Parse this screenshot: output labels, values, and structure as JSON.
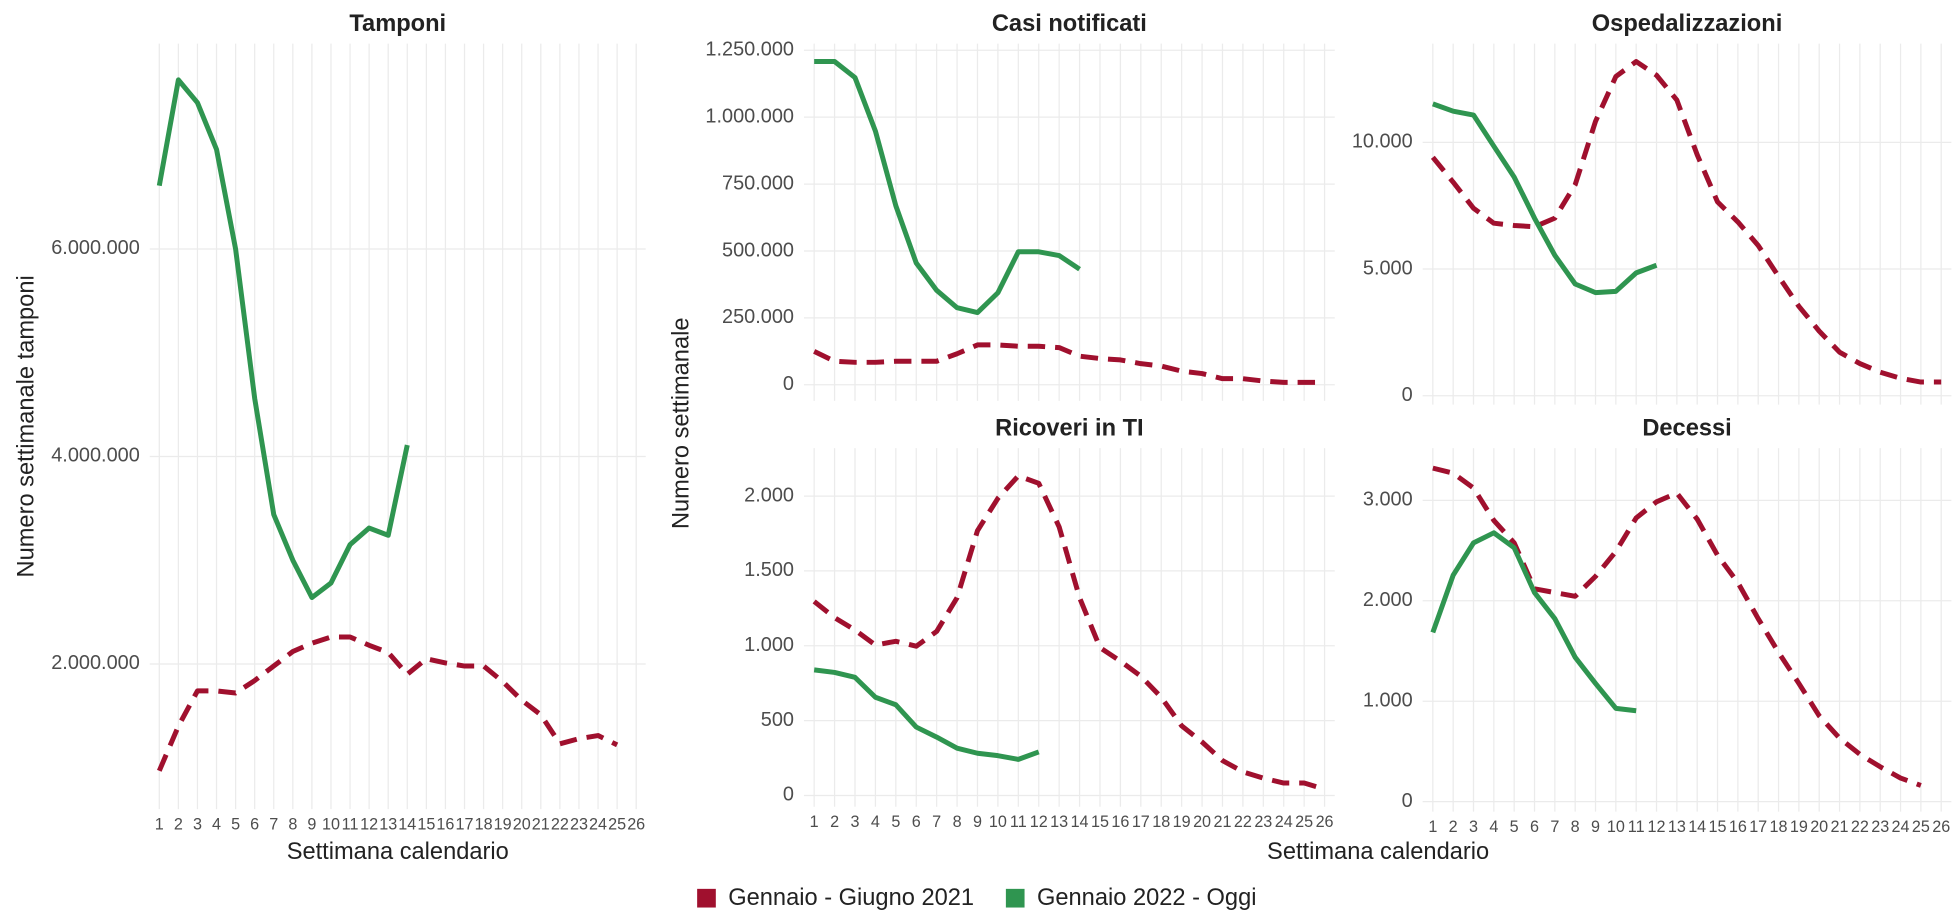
{
  "chart_data": [
    {
      "type": "line",
      "title": "Tamponi",
      "ylabel": "Numero settimanale tamponi",
      "xlabel": "Settimana calendario",
      "x": [
        1,
        2,
        3,
        4,
        5,
        6,
        7,
        8,
        9,
        10,
        11,
        12,
        13,
        14,
        15,
        16,
        17,
        18,
        19,
        20,
        21,
        22,
        23,
        24,
        25,
        26
      ],
      "xlim": [
        0.5,
        26.5
      ],
      "xticks": [
        1,
        2,
        3,
        4,
        5,
        6,
        7,
        8,
        9,
        10,
        11,
        12,
        13,
        14,
        15,
        16,
        17,
        18,
        19,
        20,
        21,
        22,
        23,
        24,
        25,
        26
      ],
      "show_xtick_labels": true,
      "ylim": [
        600000,
        7980000
      ],
      "yticks": [
        {
          "value": 2000000,
          "label": "2.000.000"
        },
        {
          "value": 4000000,
          "label": "4.000.000"
        },
        {
          "value": 6000000,
          "label": "6.000.000"
        }
      ],
      "grid": true,
      "series": [
        {
          "values": [
            970000,
            1400000,
            1740000,
            1740000,
            1720000,
            1840000,
            1980000,
            2120000,
            2200000,
            2260000,
            2260000,
            2180000,
            2110000,
            1900000,
            2050000,
            2010000,
            1980000,
            1980000,
            1830000,
            1650000,
            1510000,
            1230000,
            1280000,
            1310000,
            1220000,
            null
          ]
        },
        {
          "values": [
            6610000,
            7630000,
            7410000,
            6960000,
            6000000,
            4560000,
            3440000,
            3000000,
            2640000,
            2780000,
            3150000,
            3310000,
            3240000,
            4110000,
            null,
            null,
            null,
            null,
            null,
            null,
            null,
            null,
            null,
            null,
            null,
            null
          ]
        }
      ]
    },
    {
      "type": "line",
      "title": "Casi notificati",
      "x": [
        1,
        2,
        3,
        4,
        5,
        6,
        7,
        8,
        9,
        10,
        11,
        12,
        13,
        14,
        15,
        16,
        17,
        18,
        19,
        20,
        21,
        22,
        23,
        24,
        25,
        26
      ],
      "xlim": [
        0.5,
        26.5
      ],
      "xticks": [
        1,
        2,
        3,
        4,
        5,
        6,
        7,
        8,
        9,
        10,
        11,
        12,
        13,
        14,
        15,
        16,
        17,
        18,
        19,
        20,
        21,
        22,
        23,
        24,
        25,
        26
      ],
      "show_xtick_labels": false,
      "ylim": [
        -60000,
        1275000
      ],
      "yticks": [
        0,
        {
          "value": 250000,
          "label": "250.000"
        },
        {
          "value": 500000,
          "label": "500.000"
        },
        {
          "value": 750000,
          "label": "750.000"
        },
        {
          "value": 1000000,
          "label": "1.000.000"
        },
        {
          "value": 1250000,
          "label": "1.250.000"
        }
      ],
      "grid": true,
      "series": [
        {
          "values": [
            125000,
            88000,
            84000,
            84000,
            88000,
            88000,
            88000,
            116000,
            149000,
            149000,
            144000,
            144000,
            139000,
            107000,
            98000,
            93000,
            79000,
            70000,
            51000,
            42000,
            23000,
            23000,
            14000,
            9000,
            9000,
            9000
          ]
        },
        {
          "values": [
            1208000,
            1208000,
            1148000,
            948000,
            669000,
            455000,
            353000,
            288000,
            270000,
            344000,
            497000,
            497000,
            483000,
            432000,
            null,
            null,
            null,
            null,
            null,
            null,
            null,
            null,
            null,
            null,
            null,
            null
          ]
        }
      ]
    },
    {
      "type": "line",
      "title": "Ospedalizzazioni",
      "x": [
        1,
        2,
        3,
        4,
        5,
        6,
        7,
        8,
        9,
        10,
        11,
        12,
        13,
        14,
        15,
        16,
        17,
        18,
        19,
        20,
        21,
        22,
        23,
        24,
        25,
        26
      ],
      "xlim": [
        0.5,
        26.5
      ],
      "xticks": [
        1,
        2,
        3,
        4,
        5,
        6,
        7,
        8,
        9,
        10,
        11,
        12,
        13,
        14,
        15,
        16,
        17,
        18,
        19,
        20,
        21,
        22,
        23,
        24,
        25,
        26
      ],
      "show_xtick_labels": false,
      "ylim": [
        -350,
        13900
      ],
      "yticks": [
        0,
        {
          "value": 5000,
          "label": "5.000"
        },
        {
          "value": 10000,
          "label": "10.000"
        }
      ],
      "grid": true,
      "series": [
        {
          "values": [
            9410,
            8430,
            7400,
            6810,
            6720,
            6670,
            7010,
            8330,
            10830,
            12600,
            13190,
            12650,
            11670,
            9510,
            7650,
            6860,
            5930,
            4710,
            3530,
            2550,
            1720,
            1270,
            930,
            690,
            540,
            540
          ]
        },
        {
          "values": [
            11520,
            11230,
            11080,
            9850,
            8630,
            7010,
            5540,
            4410,
            4070,
            4120,
            4850,
            5150,
            null,
            null,
            null,
            null,
            null,
            null,
            null,
            null,
            null,
            null,
            null,
            null,
            null,
            null
          ]
        }
      ]
    },
    {
      "type": "line",
      "title": "Ricoveri in TI",
      "x": [
        1,
        2,
        3,
        4,
        5,
        6,
        7,
        8,
        9,
        10,
        11,
        12,
        13,
        14,
        15,
        16,
        17,
        18,
        19,
        20,
        21,
        22,
        23,
        24,
        25,
        26
      ],
      "xlim": [
        0.5,
        26.5
      ],
      "xticks": [
        1,
        2,
        3,
        4,
        5,
        6,
        7,
        8,
        9,
        10,
        11,
        12,
        13,
        14,
        15,
        16,
        17,
        18,
        19,
        20,
        21,
        22,
        23,
        24,
        25,
        26
      ],
      "show_xtick_labels": true,
      "ylim": [
        -75,
        2320
      ],
      "yticks": [
        0,
        500,
        {
          "value": 1000,
          "label": "1.000"
        },
        {
          "value": 1500,
          "label": "1.500"
        },
        {
          "value": 2000,
          "label": "2.000"
        }
      ],
      "grid": true,
      "series": [
        {
          "values": [
            1296,
            1188,
            1105,
            1005,
            1030,
            997,
            1096,
            1321,
            1769,
            1985,
            2135,
            2085,
            1794,
            1321,
            988,
            897,
            797,
            656,
            465,
            357,
            233,
            158,
            116,
            83,
            83,
            42
          ]
        },
        {
          "values": [
            839,
            822,
            789,
            656,
            606,
            457,
            390,
            316,
            282,
            266,
            241,
            291,
            null,
            null,
            null,
            null,
            null,
            null,
            null,
            null,
            null,
            null,
            null,
            null,
            null,
            null
          ]
        }
      ]
    },
    {
      "type": "line",
      "title": "Decessi",
      "x": [
        1,
        2,
        3,
        4,
        5,
        6,
        7,
        8,
        9,
        10,
        11,
        12,
        13,
        14,
        15,
        16,
        17,
        18,
        19,
        20,
        21,
        22,
        23,
        24,
        25,
        26
      ],
      "xlim": [
        0.5,
        26.5
      ],
      "xticks": [
        1,
        2,
        3,
        4,
        5,
        6,
        7,
        8,
        9,
        10,
        11,
        12,
        13,
        14,
        15,
        16,
        17,
        18,
        19,
        20,
        21,
        22,
        23,
        24,
        25,
        26
      ],
      "show_xtick_labels": true,
      "ylim": [
        -100,
        3520
      ],
      "yticks": [
        0,
        {
          "value": 1000,
          "label": "1.000"
        },
        {
          "value": 2000,
          "label": "2.000"
        },
        {
          "value": 3000,
          "label": "3.000"
        }
      ],
      "grid": true,
      "series": [
        {
          "values": [
            3321,
            3271,
            3123,
            2800,
            2577,
            2119,
            2082,
            2045,
            2243,
            2491,
            2825,
            2986,
            3073,
            2813,
            2454,
            2181,
            1822,
            1487,
            1177,
            855,
            632,
            471,
            347,
            235,
            161,
            null
          ]
        },
        {
          "values": [
            1685,
            2255,
            2577,
            2677,
            2528,
            2082,
            1822,
            1437,
            1177,
            929,
            905,
            null,
            null,
            null,
            null,
            null,
            null,
            null,
            null,
            null,
            null,
            null,
            null,
            null,
            null,
            null
          ]
        }
      ]
    }
  ],
  "shared_ylabel": "Numero settimanale",
  "shared_xlabel": "Settimana calendario",
  "legend": {
    "position": "bottom",
    "entries": [
      {
        "name": "Gennaio - Giugno 2021",
        "color": "#a0102e",
        "line_style": "dashed"
      },
      {
        "name": "Gennaio 2022 - Oggi",
        "color": "#2f9550",
        "line_style": "solid"
      }
    ]
  }
}
